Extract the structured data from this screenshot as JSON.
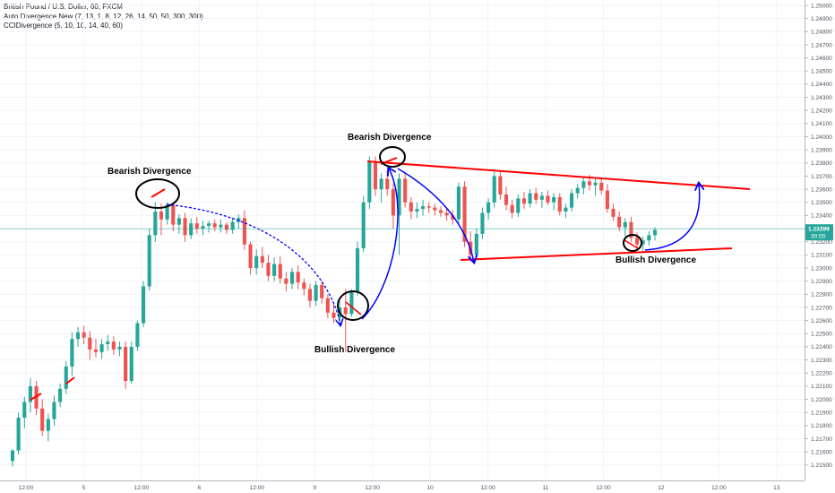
{
  "legend": {
    "title": "British Pound / U.S. Dollar, 60, FXCM",
    "indicator1": "Auto Divergence New (7, 13, 1, 8, 12, 26, 14, 50, 50, 300, 300)",
    "indicator2": "CCIDivergence (5, 10, 10, 14, 40, 60)"
  },
  "colors": {
    "up": "#26a69a",
    "down": "#ef5350",
    "trendline": "#ff0000",
    "arrow": "#0000ff",
    "circle": "#000000",
    "price_line": "#26a69a"
  },
  "chart_data": {
    "type": "candlestick",
    "symbol": "GBP/USD",
    "interval": "60",
    "y_ticks": [
      "1.25000",
      "1.24900",
      "1.24800",
      "1.24700",
      "1.24600",
      "1.24500",
      "1.24400",
      "1.24300",
      "1.24200",
      "1.24100",
      "1.24000",
      "1.23900",
      "1.23800",
      "1.23700",
      "1.23600",
      "1.23500",
      "1.23400",
      "1.23300",
      "1.23200",
      "1.23100",
      "1.23000",
      "1.22900",
      "1.22800",
      "1.22700",
      "1.22600",
      "1.22500",
      "1.22400",
      "1.22300",
      "1.22200",
      "1.22100",
      "1.22000",
      "1.21900",
      "1.21800",
      "1.21700",
      "1.21600",
      "1.21500"
    ],
    "ylim": [
      1.2145,
      1.2505
    ],
    "x_ticks": [
      "12:00",
      "5",
      "12:00",
      "6",
      "12:00",
      "9",
      "12:00",
      "10",
      "12:00",
      "11",
      "12:00",
      "12",
      "12:00",
      "13"
    ],
    "current_price": "1.23299",
    "countdown": "30:55",
    "candles": [
      [
        1.2153,
        1.2162,
        1.2149,
        1.2161
      ],
      [
        1.2161,
        1.219,
        1.2158,
        1.2186
      ],
      [
        1.2186,
        1.2202,
        1.2178,
        1.2198
      ],
      [
        1.2198,
        1.2216,
        1.219,
        1.221
      ],
      [
        1.221,
        1.2214,
        1.2188,
        1.2193
      ],
      [
        1.2193,
        1.22,
        1.2172,
        1.2176
      ],
      [
        1.2176,
        1.2189,
        1.2168,
        1.2185
      ],
      [
        1.2185,
        1.2203,
        1.218,
        1.2198
      ],
      [
        1.2198,
        1.2212,
        1.2194,
        1.2208
      ],
      [
        1.2208,
        1.2229,
        1.2204,
        1.2225
      ],
      [
        1.2225,
        1.2251,
        1.2218,
        1.2246
      ],
      [
        1.2246,
        1.2255,
        1.224,
        1.2251
      ],
      [
        1.2251,
        1.2256,
        1.2242,
        1.2247
      ],
      [
        1.2247,
        1.2252,
        1.223,
        1.2238
      ],
      [
        1.2238,
        1.2246,
        1.2232,
        1.2236
      ],
      [
        1.2236,
        1.2246,
        1.2231,
        1.2242
      ],
      [
        1.2242,
        1.2249,
        1.2237,
        1.2244
      ],
      [
        1.2244,
        1.2248,
        1.2234,
        1.2238
      ],
      [
        1.2238,
        1.2244,
        1.2233,
        1.224
      ],
      [
        1.224,
        1.2244,
        1.2208,
        1.2214
      ],
      [
        1.2214,
        1.2244,
        1.2212,
        1.224
      ],
      [
        1.224,
        1.226,
        1.2237,
        1.2258
      ],
      [
        1.2258,
        1.229,
        1.2255,
        1.2286
      ],
      [
        1.2286,
        1.233,
        1.2283,
        1.2325
      ],
      [
        1.2325,
        1.235,
        1.232,
        1.2343
      ],
      [
        1.2343,
        1.2349,
        1.2325,
        1.2337
      ],
      [
        1.2337,
        1.235,
        1.2333,
        1.2348
      ],
      [
        1.2348,
        1.235,
        1.2328,
        1.2333
      ],
      [
        1.2333,
        1.2341,
        1.2326,
        1.2338
      ],
      [
        1.2338,
        1.2342,
        1.232,
        1.2325
      ],
      [
        1.2325,
        1.2338,
        1.2322,
        1.2334
      ],
      [
        1.2334,
        1.2339,
        1.2326,
        1.233
      ],
      [
        1.233,
        1.2336,
        1.2325,
        1.2332
      ],
      [
        1.2332,
        1.2336,
        1.2327,
        1.2334
      ],
      [
        1.2334,
        1.2337,
        1.2328,
        1.2331
      ],
      [
        1.2331,
        1.2337,
        1.2327,
        1.2333
      ],
      [
        1.2333,
        1.2335,
        1.2326,
        1.2329
      ],
      [
        1.2329,
        1.2338,
        1.2326,
        1.2335
      ],
      [
        1.2335,
        1.2341,
        1.233,
        1.2338
      ],
      [
        1.2338,
        1.2344,
        1.2314,
        1.2318
      ],
      [
        1.2318,
        1.232,
        1.2295,
        1.23
      ],
      [
        1.23,
        1.2314,
        1.2295,
        1.2309
      ],
      [
        1.2309,
        1.2316,
        1.23,
        1.2304
      ],
      [
        1.2304,
        1.231,
        1.229,
        1.2294
      ],
      [
        1.2294,
        1.2308,
        1.229,
        1.2303
      ],
      [
        1.2303,
        1.2309,
        1.2288,
        1.2292
      ],
      [
        1.2292,
        1.2297,
        1.2282,
        1.2288
      ],
      [
        1.2288,
        1.23,
        1.2284,
        1.2297
      ],
      [
        1.2297,
        1.2302,
        1.2284,
        1.2289
      ],
      [
        1.2289,
        1.2292,
        1.2279,
        1.2284
      ],
      [
        1.2284,
        1.2288,
        1.227,
        1.2275
      ],
      [
        1.2275,
        1.229,
        1.2271,
        1.2287
      ],
      [
        1.2287,
        1.229,
        1.2273,
        1.2277
      ],
      [
        1.2277,
        1.228,
        1.2262,
        1.2266
      ],
      [
        1.2266,
        1.2274,
        1.2258,
        1.2262
      ],
      [
        1.2262,
        1.2275,
        1.2255,
        1.227
      ],
      [
        1.227,
        1.2284,
        1.2236,
        1.2265
      ],
      [
        1.2265,
        1.2284,
        1.2263,
        1.2282
      ],
      [
        1.2282,
        1.232,
        1.2279,
        1.2315
      ],
      [
        1.2315,
        1.2355,
        1.2312,
        1.235
      ],
      [
        1.235,
        1.2385,
        1.2345,
        1.2381
      ],
      [
        1.2381,
        1.2385,
        1.2355,
        1.236
      ],
      [
        1.236,
        1.2372,
        1.235,
        1.2368
      ],
      [
        1.2368,
        1.2374,
        1.2355,
        1.236
      ],
      [
        1.236,
        1.2364,
        1.233,
        1.234
      ],
      [
        1.234,
        1.2372,
        1.231,
        1.2368
      ],
      [
        1.2368,
        1.2373,
        1.2346,
        1.235
      ],
      [
        1.235,
        1.2354,
        1.2337,
        1.2343
      ],
      [
        1.2343,
        1.235,
        1.2338,
        1.2345
      ],
      [
        1.2345,
        1.2352,
        1.234,
        1.2347
      ],
      [
        1.2347,
        1.235,
        1.2342,
        1.2346
      ],
      [
        1.2346,
        1.2349,
        1.234,
        1.2344
      ],
      [
        1.2344,
        1.2347,
        1.2339,
        1.2342
      ],
      [
        1.2342,
        1.2346,
        1.2336,
        1.234
      ],
      [
        1.234,
        1.2344,
        1.2333,
        1.2337
      ],
      [
        1.2337,
        1.2365,
        1.2334,
        1.2362
      ],
      [
        1.2362,
        1.2366,
        1.2316,
        1.232
      ],
      [
        1.232,
        1.2328,
        1.2305,
        1.231
      ],
      [
        1.231,
        1.233,
        1.2307,
        1.2326
      ],
      [
        1.2326,
        1.2346,
        1.2322,
        1.2342
      ],
      [
        1.2342,
        1.2353,
        1.2337,
        1.235
      ],
      [
        1.235,
        1.2374,
        1.2346,
        1.237
      ],
      [
        1.237,
        1.2374,
        1.2352,
        1.2356
      ],
      [
        1.2356,
        1.2362,
        1.2344,
        1.2348
      ],
      [
        1.2348,
        1.2352,
        1.2338,
        1.2342
      ],
      [
        1.2342,
        1.2356,
        1.2339,
        1.2353
      ],
      [
        1.2353,
        1.2358,
        1.2345,
        1.2349
      ],
      [
        1.2349,
        1.236,
        1.2346,
        1.2357
      ],
      [
        1.2357,
        1.2361,
        1.2349,
        1.2352
      ],
      [
        1.2352,
        1.2358,
        1.2346,
        1.2355
      ],
      [
        1.2355,
        1.2359,
        1.2348,
        1.235
      ],
      [
        1.235,
        1.2357,
        1.2344,
        1.2354
      ],
      [
        1.2354,
        1.2357,
        1.234,
        1.2343
      ],
      [
        1.2343,
        1.2349,
        1.2338,
        1.2346
      ],
      [
        1.2346,
        1.236,
        1.2343,
        1.2357
      ],
      [
        1.2357,
        1.2364,
        1.2353,
        1.2361
      ],
      [
        1.2361,
        1.2369,
        1.2356,
        1.2366
      ],
      [
        1.2366,
        1.2371,
        1.2359,
        1.2363
      ],
      [
        1.2363,
        1.2368,
        1.2355,
        1.2365
      ],
      [
        1.2365,
        1.2369,
        1.2356,
        1.2359
      ],
      [
        1.2359,
        1.2364,
        1.2342,
        1.2345
      ],
      [
        1.2345,
        1.2349,
        1.2336,
        1.2339
      ],
      [
        1.2339,
        1.2343,
        1.2328,
        1.2331
      ],
      [
        1.2331,
        1.2338,
        1.2324,
        1.2335
      ],
      [
        1.2335,
        1.2339,
        1.232,
        1.2323
      ],
      [
        1.2323,
        1.2327,
        1.2314,
        1.2318
      ],
      [
        1.2318,
        1.2324,
        1.2312,
        1.2321
      ],
      [
        1.2321,
        1.2328,
        1.2317,
        1.2325
      ],
      [
        1.2325,
        1.2331,
        1.2321,
        1.2329
      ]
    ],
    "annotations": [
      "Bearish Divergence",
      "Bearish Divergence",
      "Bullish Divergence",
      "Bullish Divergence"
    ]
  }
}
